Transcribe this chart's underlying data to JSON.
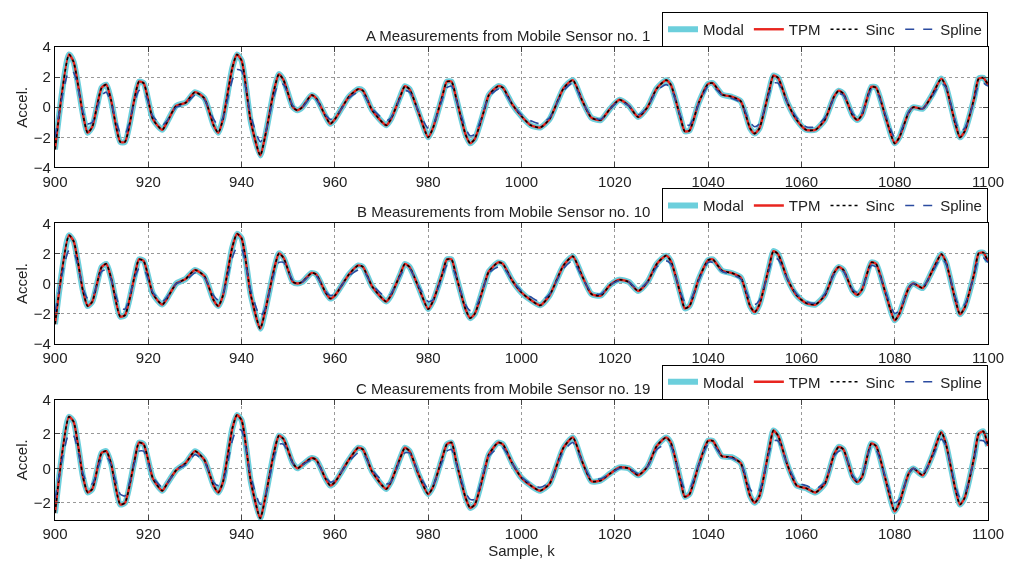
{
  "chart_data": [
    {
      "type": "line",
      "title": "A Measurements from Mobile Sensor no. 1",
      "ylabel": "Accel.",
      "xlim": [
        900,
        1100
      ],
      "xticks": [
        900,
        920,
        940,
        960,
        980,
        1000,
        1020,
        1040,
        1060,
        1080,
        1100
      ],
      "ylim": [
        -4,
        4
      ],
      "yticks": [
        -4,
        -2,
        0,
        2,
        4
      ],
      "grid": true,
      "legend": "top right",
      "x": [
        900,
        903,
        904,
        906,
        907,
        908,
        910,
        911,
        912,
        914,
        915,
        917,
        918,
        919,
        921,
        923,
        924,
        926,
        928,
        930,
        932,
        934,
        935,
        936,
        938,
        939,
        940,
        942,
        944,
        945,
        947,
        948,
        949,
        951,
        952,
        953,
        955,
        956,
        958,
        959,
        960,
        963,
        965,
        966,
        968,
        971,
        972,
        974,
        975,
        976,
        978,
        980,
        981,
        983,
        984,
        985,
        986,
        988,
        989,
        990,
        992,
        993,
        995,
        996,
        998,
        1000,
        1002,
        1004,
        1006,
        1009,
        1011,
        1013,
        1015,
        1017,
        1019,
        1021,
        1023,
        1025,
        1027,
        1029,
        1031,
        1032,
        1034,
        1035,
        1036,
        1038,
        1040,
        1041,
        1043,
        1045,
        1047,
        1049,
        1050,
        1051,
        1053,
        1054,
        1055,
        1057,
        1059,
        1061,
        1063,
        1065,
        1067,
        1068,
        1069,
        1071,
        1072,
        1073,
        1075,
        1076,
        1078,
        1080,
        1081,
        1083,
        1084,
        1086,
        1088,
        1090,
        1091,
        1093,
        1094,
        1095,
        1097,
        1098,
        1099,
        1100
      ],
      "series": [
        {
          "name": "Modal",
          "color": "#6ccfdc",
          "line_style": "solid",
          "values": [
            -2.8,
            3.5,
            3.0,
            -0.5,
            -1.7,
            -1.3,
            1.3,
            1.5,
            0.5,
            -2.3,
            -2.3,
            0.5,
            1.7,
            1.6,
            -0.8,
            -1.5,
            -1.0,
            0.1,
            0.3,
            1.0,
            0.6,
            -1.2,
            -1.7,
            -0.8,
            2.6,
            3.5,
            3.1,
            -1.0,
            -3.2,
            -2.0,
            1.2,
            2.2,
            1.8,
            0.0,
            -0.2,
            0.0,
            0.8,
            0.6,
            -0.6,
            -1.1,
            -0.8,
            0.7,
            1.2,
            1.1,
            -0.2,
            -1.2,
            -0.8,
            0.7,
            1.4,
            1.2,
            -0.4,
            -2.0,
            -1.4,
            0.7,
            1.7,
            1.7,
            0.6,
            -1.8,
            -2.4,
            -2.1,
            -0.2,
            0.8,
            1.4,
            1.3,
            0.2,
            -0.6,
            -1.2,
            -1.35,
            -0.8,
            1.25,
            1.8,
            0.45,
            -0.7,
            -0.85,
            -0.1,
            0.5,
            0.1,
            -0.65,
            0.0,
            1.25,
            1.8,
            1.5,
            -0.6,
            -1.6,
            -1.55,
            0.3,
            1.55,
            1.6,
            0.85,
            0.7,
            0.4,
            -1.4,
            -1.75,
            -1.4,
            1.0,
            2.1,
            1.95,
            0.3,
            -0.85,
            -1.5,
            -1.5,
            -0.85,
            0.7,
            1.1,
            0.9,
            -0.55,
            -0.85,
            -0.5,
            1.35,
            1.3,
            -0.6,
            -2.4,
            -2.0,
            -0.35,
            0.0,
            -0.1,
            0.8,
            1.9,
            1.35,
            -1.1,
            -2.0,
            -1.6,
            0.55,
            1.9,
            1.95,
            1.5
          ]
        },
        {
          "name": "TPM",
          "color": "#e8251f",
          "line_style": "solid",
          "values": [
            -2.8,
            3.5,
            3.0,
            -0.5,
            -1.7,
            -1.3,
            1.3,
            1.5,
            0.5,
            -2.3,
            -2.3,
            0.5,
            1.7,
            1.6,
            -0.8,
            -1.5,
            -1.0,
            0.1,
            0.3,
            1.0,
            0.6,
            -1.2,
            -1.7,
            -0.8,
            2.6,
            3.5,
            3.1,
            -1.0,
            -3.2,
            -2.0,
            1.2,
            2.2,
            1.8,
            0.0,
            -0.2,
            0.0,
            0.8,
            0.6,
            -0.6,
            -1.1,
            -0.8,
            0.7,
            1.2,
            1.1,
            -0.2,
            -1.2,
            -0.8,
            0.7,
            1.4,
            1.2,
            -0.4,
            -2.0,
            -1.4,
            0.7,
            1.7,
            1.7,
            0.6,
            -1.8,
            -2.4,
            -2.1,
            -0.2,
            0.8,
            1.4,
            1.3,
            0.2,
            -0.6,
            -1.2,
            -1.35,
            -0.8,
            1.25,
            1.8,
            0.45,
            -0.7,
            -0.85,
            -0.1,
            0.5,
            0.1,
            -0.65,
            0.0,
            1.25,
            1.8,
            1.5,
            -0.6,
            -1.6,
            -1.55,
            0.3,
            1.55,
            1.6,
            0.85,
            0.7,
            0.4,
            -1.4,
            -1.75,
            -1.4,
            1.0,
            2.1,
            1.95,
            0.3,
            -0.85,
            -1.5,
            -1.5,
            -0.85,
            0.7,
            1.1,
            0.9,
            -0.55,
            -0.85,
            -0.5,
            1.35,
            1.3,
            -0.6,
            -2.4,
            -2.0,
            -0.35,
            0.0,
            -0.1,
            0.8,
            1.9,
            1.35,
            -1.1,
            -2.0,
            -1.6,
            0.55,
            1.9,
            1.95,
            1.5
          ]
        },
        {
          "name": "Sinc",
          "color": "#000000",
          "line_style": "dotted",
          "values": [
            -2.8,
            3.5,
            3.0,
            -0.5,
            -1.7,
            -1.3,
            1.3,
            1.5,
            0.5,
            -2.3,
            -2.3,
            0.5,
            1.7,
            1.6,
            -0.8,
            -1.5,
            -1.0,
            0.1,
            0.3,
            1.0,
            0.6,
            -1.2,
            -1.7,
            -0.8,
            2.6,
            3.5,
            3.1,
            -1.0,
            -3.2,
            -2.0,
            1.2,
            2.2,
            1.8,
            0.0,
            -0.2,
            0.0,
            0.8,
            0.6,
            -0.6,
            -1.1,
            -0.8,
            0.7,
            1.2,
            1.1,
            -0.2,
            -1.2,
            -0.8,
            0.7,
            1.4,
            1.2,
            -0.4,
            -2.0,
            -1.4,
            0.7,
            1.7,
            1.7,
            0.6,
            -1.8,
            -2.4,
            -2.1,
            -0.2,
            0.8,
            1.4,
            1.3,
            0.2,
            -0.6,
            -1.2,
            -1.35,
            -0.8,
            1.25,
            1.8,
            0.45,
            -0.7,
            -0.85,
            -0.1,
            0.5,
            0.1,
            -0.65,
            0.0,
            1.25,
            1.8,
            1.5,
            -0.6,
            -1.6,
            -1.55,
            0.3,
            1.55,
            1.6,
            0.85,
            0.7,
            0.4,
            -1.4,
            -1.75,
            -1.4,
            1.0,
            2.1,
            1.95,
            0.3,
            -0.85,
            -1.5,
            -1.5,
            -0.85,
            0.7,
            1.1,
            0.9,
            -0.55,
            -0.85,
            -0.5,
            1.35,
            1.3,
            -0.6,
            -2.4,
            -2.0,
            -0.35,
            0.0,
            -0.1,
            0.8,
            1.9,
            1.35,
            -1.1,
            -2.0,
            -1.6,
            0.55,
            1.9,
            1.95,
            1.5
          ]
        },
        {
          "name": "Spline",
          "color": "#2b4ba0",
          "line_style": "dashed",
          "values": [
            -2.0,
            2.4,
            2.3,
            -0.3,
            -1.1,
            -1.0,
            0.8,
            1.0,
            0.3,
            -1.7,
            -1.8,
            0.3,
            1.1,
            1.1,
            -0.6,
            -1.2,
            -0.9,
            0.0,
            0.2,
            0.8,
            0.5,
            -0.8,
            -1.2,
            -0.7,
            1.8,
            2.5,
            2.4,
            -0.6,
            -2.3,
            -1.8,
            0.8,
            1.6,
            1.5,
            0.1,
            -0.1,
            0.0,
            0.7,
            0.5,
            -0.5,
            -0.8,
            -0.7,
            0.6,
            1.0,
            0.9,
            -0.1,
            -0.9,
            -0.7,
            0.6,
            1.1,
            1.0,
            -0.3,
            -1.4,
            -1.2,
            0.5,
            1.3,
            1.4,
            0.5,
            -1.4,
            -1.9,
            -1.8,
            -0.1,
            0.7,
            1.2,
            1.1,
            0.2,
            -0.5,
            -0.9,
            -1.1,
            -0.7,
            1.1,
            1.6,
            0.4,
            -0.6,
            -0.8,
            -0.1,
            0.4,
            0.1,
            -0.5,
            0.0,
            1.1,
            1.5,
            1.3,
            -0.5,
            -1.1,
            -1.2,
            0.2,
            1.4,
            1.4,
            0.8,
            0.6,
            0.3,
            -1.0,
            -1.3,
            -1.1,
            0.8,
            1.6,
            1.6,
            0.3,
            -0.7,
            -1.3,
            -1.3,
            -0.7,
            0.6,
            0.9,
            0.8,
            -0.4,
            -0.7,
            -0.4,
            1.2,
            1.1,
            -0.5,
            -2.0,
            -1.8,
            -0.3,
            0.0,
            -0.1,
            0.7,
            1.6,
            1.3,
            -0.9,
            -1.6,
            -1.4,
            0.4,
            1.5,
            1.6,
            1.4
          ]
        }
      ]
    },
    {
      "type": "line",
      "title": "B Measurements from Mobile Sensor no. 10",
      "ylabel": "Accel.",
      "xlim": [
        900,
        1100
      ],
      "xticks": [
        900,
        920,
        940,
        960,
        980,
        1000,
        1020,
        1040,
        1060,
        1080,
        1100
      ],
      "ylim": [
        -4,
        4
      ],
      "yticks": [
        -4,
        -2,
        0,
        2,
        4
      ],
      "grid": true,
      "legend": "top right",
      "x": [
        900,
        903,
        904,
        906,
        907,
        908,
        910,
        911,
        912,
        914,
        915,
        917,
        918,
        919,
        921,
        923,
        924,
        926,
        928,
        930,
        932,
        934,
        935,
        936,
        938,
        939,
        940,
        942,
        944,
        945,
        947,
        948,
        949,
        951,
        952,
        953,
        955,
        956,
        958,
        959,
        960,
        963,
        965,
        966,
        968,
        971,
        972,
        974,
        975,
        976,
        978,
        980,
        981,
        983,
        984,
        985,
        986,
        988,
        989,
        990,
        992,
        993,
        995,
        996,
        998,
        1000,
        1002,
        1004,
        1006,
        1009,
        1011,
        1013,
        1015,
        1017,
        1019,
        1021,
        1023,
        1025,
        1027,
        1029,
        1031,
        1032,
        1034,
        1035,
        1036,
        1038,
        1040,
        1041,
        1043,
        1045,
        1047,
        1049,
        1050,
        1051,
        1053,
        1054,
        1055,
        1057,
        1059,
        1061,
        1063,
        1065,
        1067,
        1068,
        1069,
        1071,
        1072,
        1073,
        1075,
        1076,
        1078,
        1080,
        1081,
        1083,
        1084,
        1086,
        1088,
        1090,
        1091,
        1093,
        1094,
        1095,
        1097,
        1098,
        1099,
        1100
      ],
      "series": [
        {
          "name": "Modal",
          "color": "#6ccfdc",
          "line_style": "solid",
          "values": [
            -2.7,
            3.2,
            2.8,
            -0.5,
            -1.5,
            -1.2,
            1.1,
            1.3,
            0.4,
            -2.2,
            -2.1,
            0.4,
            1.6,
            1.5,
            -0.7,
            -1.4,
            -1.0,
            0.0,
            0.3,
            0.9,
            0.5,
            -1.1,
            -1.5,
            -0.8,
            2.4,
            3.3,
            3.0,
            -0.8,
            -3.0,
            -1.9,
            1.0,
            2.0,
            1.7,
            0.1,
            0.0,
            0.1,
            0.7,
            0.6,
            -0.6,
            -1.0,
            -0.8,
            0.6,
            1.2,
            1.1,
            -0.2,
            -1.2,
            -0.8,
            0.6,
            1.3,
            1.1,
            -0.3,
            -1.7,
            -1.2,
            0.6,
            1.6,
            1.6,
            0.5,
            -1.7,
            -2.3,
            -2.0,
            -0.1,
            0.8,
            1.4,
            1.3,
            0.2,
            -0.6,
            -1.1,
            -1.45,
            -0.8,
            1.2,
            1.8,
            0.5,
            -0.7,
            -0.8,
            -0.1,
            0.25,
            0.1,
            -0.5,
            0.1,
            1.3,
            1.85,
            1.5,
            -0.6,
            -1.65,
            -1.5,
            0.3,
            1.55,
            1.6,
            0.85,
            0.7,
            0.4,
            -1.5,
            -1.9,
            -1.4,
            1.0,
            2.15,
            1.95,
            0.3,
            -0.8,
            -1.3,
            -1.4,
            -0.8,
            0.7,
            1.1,
            0.9,
            -0.5,
            -0.75,
            -0.4,
            1.4,
            1.3,
            -0.6,
            -2.45,
            -2.0,
            -0.3,
            0.0,
            -0.3,
            0.8,
            1.95,
            1.4,
            -1.1,
            -2.05,
            -1.6,
            0.6,
            2.0,
            2.05,
            1.45
          ]
        },
        {
          "name": "TPM",
          "color": "#e8251f",
          "line_style": "solid",
          "values": [
            -2.7,
            3.2,
            2.8,
            -0.5,
            -1.5,
            -1.2,
            1.1,
            1.3,
            0.4,
            -2.2,
            -2.1,
            0.4,
            1.6,
            1.5,
            -0.7,
            -1.4,
            -1.0,
            0.0,
            0.3,
            0.9,
            0.5,
            -1.1,
            -1.5,
            -0.8,
            2.4,
            3.3,
            3.0,
            -0.8,
            -3.0,
            -1.9,
            1.0,
            2.0,
            1.7,
            0.1,
            0.0,
            0.1,
            0.7,
            0.6,
            -0.6,
            -1.0,
            -0.8,
            0.6,
            1.2,
            1.1,
            -0.2,
            -1.2,
            -0.8,
            0.6,
            1.3,
            1.1,
            -0.3,
            -1.7,
            -1.2,
            0.6,
            1.6,
            1.6,
            0.5,
            -1.7,
            -2.3,
            -2.0,
            -0.1,
            0.8,
            1.4,
            1.3,
            0.2,
            -0.6,
            -1.1,
            -1.45,
            -0.8,
            1.2,
            1.8,
            0.5,
            -0.7,
            -0.8,
            -0.1,
            0.25,
            0.1,
            -0.5,
            0.1,
            1.3,
            1.85,
            1.5,
            -0.6,
            -1.65,
            -1.5,
            0.3,
            1.55,
            1.6,
            0.85,
            0.7,
            0.4,
            -1.5,
            -1.9,
            -1.4,
            1.0,
            2.15,
            1.95,
            0.3,
            -0.8,
            -1.3,
            -1.4,
            -0.8,
            0.7,
            1.1,
            0.9,
            -0.5,
            -0.75,
            -0.4,
            1.4,
            1.3,
            -0.6,
            -2.45,
            -2.0,
            -0.3,
            0.0,
            -0.3,
            0.8,
            1.95,
            1.4,
            -1.1,
            -2.05,
            -1.6,
            0.6,
            2.0,
            2.05,
            1.45
          ]
        },
        {
          "name": "Sinc",
          "color": "#000000",
          "line_style": "dotted",
          "values": [
            -2.7,
            3.2,
            2.8,
            -0.5,
            -1.5,
            -1.2,
            1.1,
            1.3,
            0.4,
            -2.2,
            -2.1,
            0.4,
            1.6,
            1.5,
            -0.7,
            -1.4,
            -1.0,
            0.0,
            0.3,
            0.9,
            0.5,
            -1.1,
            -1.5,
            -0.8,
            2.4,
            3.3,
            3.0,
            -0.8,
            -3.0,
            -1.9,
            1.0,
            2.0,
            1.7,
            0.1,
            0.0,
            0.1,
            0.7,
            0.6,
            -0.6,
            -1.0,
            -0.8,
            0.6,
            1.2,
            1.1,
            -0.2,
            -1.2,
            -0.8,
            0.6,
            1.3,
            1.1,
            -0.3,
            -1.7,
            -1.2,
            0.6,
            1.6,
            1.6,
            0.5,
            -1.7,
            -2.3,
            -2.0,
            -0.1,
            0.8,
            1.4,
            1.3,
            0.2,
            -0.6,
            -1.1,
            -1.45,
            -0.8,
            1.2,
            1.8,
            0.5,
            -0.7,
            -0.8,
            -0.1,
            0.25,
            0.1,
            -0.5,
            0.1,
            1.3,
            1.85,
            1.5,
            -0.6,
            -1.65,
            -1.5,
            0.3,
            1.55,
            1.6,
            0.85,
            0.7,
            0.4,
            -1.5,
            -1.9,
            -1.4,
            1.0,
            2.15,
            1.95,
            0.3,
            -0.8,
            -1.3,
            -1.4,
            -0.8,
            0.7,
            1.1,
            0.9,
            -0.5,
            -0.75,
            -0.4,
            1.4,
            1.3,
            -0.6,
            -2.45,
            -2.0,
            -0.3,
            0.0,
            -0.3,
            0.8,
            1.95,
            1.4,
            -1.1,
            -2.05,
            -1.6,
            0.6,
            2.0,
            2.05,
            1.45
          ]
        },
        {
          "name": "Spline",
          "color": "#2b4ba0",
          "line_style": "dashed",
          "values": [
            -1.9,
            2.2,
            2.1,
            -0.3,
            -1.0,
            -0.9,
            0.8,
            0.9,
            0.3,
            -1.6,
            -1.7,
            0.3,
            1.0,
            1.0,
            -0.6,
            -1.2,
            -0.9,
            0.0,
            0.2,
            0.7,
            0.4,
            -0.8,
            -1.1,
            -0.7,
            1.7,
            2.4,
            2.3,
            -0.5,
            -2.2,
            -1.7,
            0.7,
            1.4,
            1.4,
            0.2,
            0.0,
            0.1,
            0.6,
            0.5,
            -0.5,
            -0.8,
            -0.7,
            0.5,
            0.9,
            0.9,
            -0.1,
            -0.9,
            -0.7,
            0.5,
            1.0,
            1.0,
            -0.2,
            -1.2,
            -1.1,
            0.4,
            1.2,
            1.2,
            0.4,
            -1.4,
            -1.8,
            -1.7,
            -0.1,
            0.7,
            1.1,
            1.1,
            0.2,
            -0.5,
            -0.9,
            -1.2,
            -0.7,
            1.0,
            1.5,
            0.4,
            -0.6,
            -0.7,
            -0.1,
            0.2,
            0.1,
            -0.4,
            0.1,
            1.1,
            1.5,
            1.3,
            -0.5,
            -1.2,
            -1.2,
            0.2,
            1.4,
            1.4,
            0.8,
            0.6,
            0.3,
            -1.1,
            -1.4,
            -1.1,
            0.8,
            1.7,
            1.6,
            0.3,
            -0.7,
            -1.2,
            -1.3,
            -0.7,
            0.6,
            0.9,
            0.8,
            -0.4,
            -0.6,
            -0.3,
            1.2,
            1.1,
            -0.5,
            -2.0,
            -1.8,
            -0.3,
            0.0,
            -0.2,
            0.7,
            1.7,
            1.3,
            -0.9,
            -1.6,
            -1.4,
            0.5,
            1.6,
            1.7,
            1.4
          ]
        }
      ]
    },
    {
      "type": "line",
      "title": "C Measurements from Mobile Sensor no. 19",
      "xlabel": "Sample, k",
      "ylabel": "Accel.",
      "xlim": [
        900,
        1100
      ],
      "xticks": [
        900,
        920,
        940,
        960,
        980,
        1000,
        1020,
        1040,
        1060,
        1080,
        1100
      ],
      "ylim": [
        -3,
        4
      ],
      "yticks": [
        -2,
        0,
        2,
        4
      ],
      "grid": true,
      "legend": "top right",
      "x": [
        900,
        903,
        904,
        906,
        907,
        908,
        910,
        911,
        912,
        914,
        915,
        917,
        918,
        919,
        921,
        923,
        924,
        926,
        928,
        930,
        932,
        934,
        935,
        936,
        938,
        939,
        940,
        942,
        944,
        945,
        947,
        948,
        949,
        951,
        952,
        953,
        955,
        956,
        958,
        959,
        960,
        963,
        965,
        966,
        968,
        971,
        972,
        974,
        975,
        976,
        978,
        980,
        981,
        983,
        984,
        985,
        986,
        988,
        989,
        990,
        992,
        993,
        995,
        996,
        998,
        1000,
        1002,
        1004,
        1006,
        1009,
        1011,
        1013,
        1015,
        1017,
        1019,
        1021,
        1023,
        1025,
        1027,
        1029,
        1031,
        1032,
        1034,
        1035,
        1036,
        1038,
        1040,
        1041,
        1043,
        1045,
        1047,
        1049,
        1050,
        1051,
        1053,
        1054,
        1055,
        1057,
        1059,
        1061,
        1063,
        1065,
        1067,
        1068,
        1069,
        1071,
        1072,
        1073,
        1075,
        1076,
        1078,
        1080,
        1081,
        1083,
        1084,
        1086,
        1088,
        1090,
        1091,
        1093,
        1094,
        1095,
        1097,
        1098,
        1099,
        1100
      ],
      "series": [
        {
          "name": "Modal",
          "color": "#6ccfdc",
          "line_style": "solid",
          "values": [
            -2.6,
            3.0,
            2.7,
            -0.5,
            -1.4,
            -1.2,
            0.9,
            1.0,
            0.3,
            -2.1,
            -2.0,
            0.4,
            1.5,
            1.4,
            -0.6,
            -1.3,
            -0.9,
            -0.1,
            0.3,
            1.0,
            0.5,
            -1.0,
            -1.4,
            -0.8,
            2.3,
            3.1,
            2.8,
            -0.8,
            -2.9,
            -1.8,
            1.0,
            1.9,
            1.7,
            0.3,
            0.0,
            0.2,
            0.6,
            0.5,
            -0.6,
            -1.0,
            -0.8,
            0.5,
            1.2,
            1.1,
            -0.2,
            -1.2,
            -0.8,
            0.6,
            1.2,
            1.0,
            -0.4,
            -1.5,
            -1.1,
            0.6,
            1.4,
            1.5,
            0.4,
            -1.7,
            -2.3,
            -2.1,
            -0.2,
            0.8,
            1.5,
            1.4,
            0.3,
            -0.55,
            -1.0,
            -1.3,
            -0.9,
            1.2,
            1.8,
            0.4,
            -0.75,
            -0.7,
            -0.3,
            0.05,
            0.0,
            -0.4,
            0.1,
            1.3,
            1.8,
            1.5,
            -0.6,
            -1.65,
            -1.5,
            0.2,
            1.6,
            1.6,
            0.7,
            0.65,
            0.3,
            -1.6,
            -2.0,
            -1.6,
            1.0,
            2.2,
            1.9,
            0.2,
            -1.0,
            -1.15,
            -1.4,
            -0.9,
            0.8,
            1.25,
            1.1,
            -0.5,
            -0.8,
            -0.5,
            1.45,
            1.3,
            -0.6,
            -2.5,
            -2.0,
            -0.3,
            0.0,
            -0.4,
            0.7,
            2.1,
            1.4,
            -1.2,
            -2.1,
            -1.7,
            0.6,
            2.0,
            2.15,
            1.3
          ]
        },
        {
          "name": "TPM",
          "color": "#e8251f",
          "line_style": "solid",
          "values": [
            -2.6,
            3.0,
            2.7,
            -0.5,
            -1.4,
            -1.2,
            0.9,
            1.0,
            0.3,
            -2.1,
            -2.0,
            0.4,
            1.5,
            1.4,
            -0.6,
            -1.3,
            -0.9,
            -0.1,
            0.3,
            1.0,
            0.5,
            -1.0,
            -1.4,
            -0.8,
            2.3,
            3.1,
            2.8,
            -0.8,
            -2.9,
            -1.8,
            1.0,
            1.9,
            1.7,
            0.3,
            0.0,
            0.2,
            0.6,
            0.5,
            -0.6,
            -1.0,
            -0.8,
            0.5,
            1.2,
            1.1,
            -0.2,
            -1.2,
            -0.8,
            0.6,
            1.2,
            1.0,
            -0.4,
            -1.5,
            -1.1,
            0.6,
            1.4,
            1.5,
            0.4,
            -1.7,
            -2.3,
            -2.1,
            -0.2,
            0.8,
            1.5,
            1.4,
            0.3,
            -0.55,
            -1.0,
            -1.3,
            -0.9,
            1.2,
            1.8,
            0.4,
            -0.75,
            -0.7,
            -0.3,
            0.05,
            0.0,
            -0.4,
            0.1,
            1.3,
            1.8,
            1.5,
            -0.6,
            -1.65,
            -1.5,
            0.2,
            1.6,
            1.6,
            0.7,
            0.65,
            0.3,
            -1.6,
            -2.0,
            -1.6,
            1.0,
            2.2,
            1.9,
            0.2,
            -1.0,
            -1.15,
            -1.4,
            -0.9,
            0.8,
            1.25,
            1.1,
            -0.5,
            -0.8,
            -0.5,
            1.45,
            1.3,
            -0.6,
            -2.5,
            -2.0,
            -0.3,
            0.0,
            -0.4,
            0.7,
            2.1,
            1.4,
            -1.2,
            -2.1,
            -1.7,
            0.6,
            2.0,
            2.15,
            1.3
          ]
        },
        {
          "name": "Sinc",
          "color": "#000000",
          "line_style": "dotted",
          "values": [
            -2.6,
            3.0,
            2.7,
            -0.5,
            -1.4,
            -1.2,
            0.9,
            1.0,
            0.3,
            -2.1,
            -2.0,
            0.4,
            1.5,
            1.4,
            -0.6,
            -1.3,
            -0.9,
            -0.1,
            0.3,
            1.0,
            0.5,
            -1.0,
            -1.4,
            -0.8,
            2.3,
            3.1,
            2.8,
            -0.8,
            -2.9,
            -1.8,
            1.0,
            1.9,
            1.7,
            0.3,
            0.0,
            0.2,
            0.6,
            0.5,
            -0.6,
            -1.0,
            -0.8,
            0.5,
            1.2,
            1.1,
            -0.2,
            -1.2,
            -0.8,
            0.6,
            1.2,
            1.0,
            -0.4,
            -1.5,
            -1.1,
            0.6,
            1.4,
            1.5,
            0.4,
            -1.7,
            -2.3,
            -2.1,
            -0.2,
            0.8,
            1.5,
            1.4,
            0.3,
            -0.55,
            -1.0,
            -1.3,
            -0.9,
            1.2,
            1.8,
            0.4,
            -0.75,
            -0.7,
            -0.3,
            0.05,
            0.0,
            -0.4,
            0.1,
            1.3,
            1.8,
            1.5,
            -0.6,
            -1.65,
            -1.5,
            0.2,
            1.6,
            1.6,
            0.7,
            0.65,
            0.3,
            -1.6,
            -2.0,
            -1.6,
            1.0,
            2.2,
            1.9,
            0.2,
            -1.0,
            -1.15,
            -1.4,
            -0.9,
            0.8,
            1.25,
            1.1,
            -0.5,
            -0.8,
            -0.5,
            1.45,
            1.3,
            -0.6,
            -2.5,
            -2.0,
            -0.3,
            0.0,
            -0.4,
            0.7,
            2.1,
            1.4,
            -1.2,
            -2.1,
            -1.7,
            0.6,
            2.0,
            2.15,
            1.3
          ]
        },
        {
          "name": "Spline",
          "color": "#2b4ba0",
          "line_style": "dashed",
          "values": [
            -1.8,
            2.0,
            1.9,
            -0.3,
            -0.9,
            -0.9,
            0.6,
            0.7,
            0.2,
            -1.5,
            -1.6,
            0.3,
            1.0,
            1.0,
            -0.5,
            -1.1,
            -0.9,
            -0.1,
            0.2,
            0.8,
            0.4,
            -0.8,
            -1.0,
            -0.8,
            1.6,
            2.3,
            2.2,
            -0.5,
            -2.1,
            -1.7,
            0.7,
            1.4,
            1.4,
            0.3,
            0.1,
            0.2,
            0.5,
            0.4,
            -0.5,
            -0.8,
            -0.7,
            0.4,
            0.9,
            0.9,
            -0.1,
            -0.9,
            -0.8,
            0.5,
            0.9,
            0.9,
            -0.3,
            -1.2,
            -1.0,
            0.4,
            1.0,
            1.1,
            0.3,
            -1.4,
            -1.8,
            -1.8,
            -0.1,
            0.7,
            1.2,
            1.2,
            0.3,
            -0.5,
            -0.9,
            -1.1,
            -0.8,
            1.0,
            1.5,
            0.4,
            -0.6,
            -0.6,
            -0.3,
            0.0,
            0.0,
            -0.3,
            0.1,
            1.1,
            1.4,
            1.3,
            -0.5,
            -1.2,
            -1.2,
            0.2,
            1.4,
            1.4,
            0.7,
            0.6,
            0.3,
            -1.2,
            -1.5,
            -1.3,
            0.8,
            1.6,
            1.6,
            0.2,
            -0.8,
            -1.0,
            -1.2,
            -0.8,
            0.7,
            1.0,
            1.0,
            -0.4,
            -0.7,
            -0.4,
            1.3,
            1.1,
            -0.5,
            -2.0,
            -1.8,
            -0.3,
            0.0,
            -0.3,
            0.6,
            1.7,
            1.3,
            -1.0,
            -1.7,
            -1.5,
            0.5,
            1.6,
            1.6,
            1.3
          ]
        }
      ]
    }
  ]
}
